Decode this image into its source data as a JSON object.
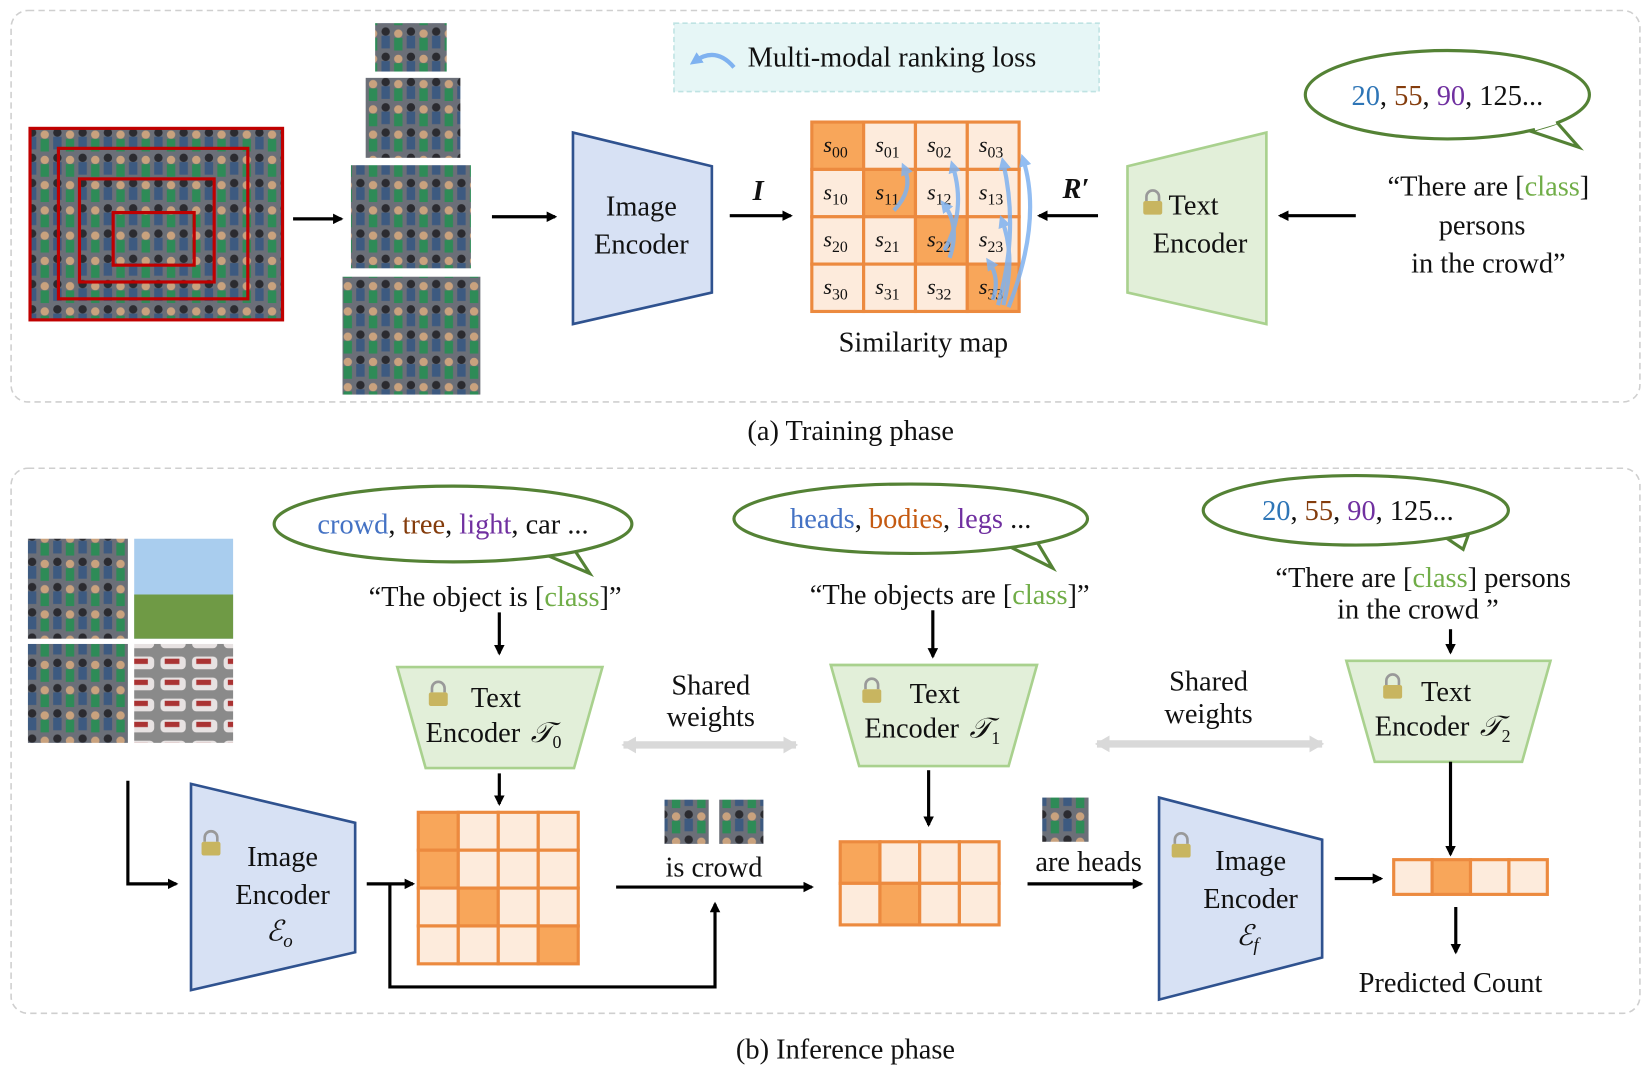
{
  "colors": {
    "class_word": "#70ad47",
    "num_20": "#2e75b6",
    "num_55": "#843c0c",
    "num_90": "#7030a0",
    "word_blue": "#4472c4",
    "word_brown": "#843c0c",
    "word_orange": "#c55a11",
    "word_purple": "#7030a0",
    "predicted": "#c00000",
    "cell_dark": "#f8a65a",
    "cell_light": "#fdebdc",
    "image_encoder": "#d7e1f4",
    "text_encoder": "#e2efd9"
  },
  "training": {
    "caption": "(a) Training phase",
    "legend": {
      "icon": "curved-arrow-icon",
      "label": "Multi-modal ranking loss"
    },
    "image_encoder": {
      "line1": "Image",
      "line2": "Encoder"
    },
    "text_encoder": {
      "icon": "lock-icon",
      "line1": "Text",
      "line2": "Encoder"
    },
    "arrow_I": "I",
    "arrow_R": "R′",
    "similarity_map": {
      "label": "Similarity map",
      "symbol": "s",
      "cells": [
        [
          "00",
          "01",
          "02",
          "03"
        ],
        [
          "10",
          "11",
          "12",
          "13"
        ],
        [
          "20",
          "21",
          "22",
          "23"
        ],
        [
          "30",
          "31",
          "32",
          "33"
        ]
      ],
      "highlighted": [
        [
          0,
          0
        ],
        [
          1,
          1
        ],
        [
          2,
          2
        ],
        [
          3,
          3
        ]
      ]
    },
    "bubble": {
      "parts": [
        "20",
        ", ",
        "55",
        ", ",
        "90",
        ", 125..."
      ]
    },
    "prompt": {
      "line1_a": "“There are [",
      "line1_class": "class",
      "line1_b": "]",
      "line2": "persons",
      "line3": "in the crowd”"
    }
  },
  "inference": {
    "caption": "(b) Inference phase",
    "image_encoder_o": {
      "icon": "lock-icon",
      "line1": "Image",
      "line2": "Encoder",
      "symbol": "ℰ",
      "sub": "o"
    },
    "image_encoder_f": {
      "icon": "lock-icon",
      "line1": "Image",
      "line2": "Encoder",
      "symbol": "ℰ",
      "sub": "f"
    },
    "bubble0": {
      "parts": [
        "crowd",
        ", ",
        "tree",
        ", ",
        "light",
        ", car ..."
      ]
    },
    "prompt0": {
      "a": "“The object is [",
      "class": "class",
      "b": "]”"
    },
    "text_encoder0": {
      "line1": "Text",
      "line2": "Encoder",
      "symbol": "𝒯",
      "sub": "0"
    },
    "bubble1": {
      "parts": [
        "heads",
        ", ",
        "bodies",
        ", ",
        "legs",
        " ..."
      ]
    },
    "prompt1": {
      "a": "“The objects are [",
      "class": "class",
      "b": "]”"
    },
    "text_encoder1": {
      "line1": "Text",
      "line2": "Encoder",
      "symbol": "𝒯",
      "sub": "1"
    },
    "bubble2": {
      "parts": [
        "20",
        ", ",
        "55",
        ", ",
        "90",
        ", 125..."
      ]
    },
    "prompt2": {
      "a": "“There are [",
      "class": "class",
      "b": "] persons",
      "line2": "in the crowd ”"
    },
    "text_encoder2": {
      "line1": "Text",
      "line2": "Encoder",
      "symbol": "𝒯",
      "sub": "2"
    },
    "shared_weights": {
      "line1": "Shared",
      "line2": "weights"
    },
    "is_crowd": "is crowd",
    "are_heads": "are heads",
    "grid0_highlighted": [
      [
        0,
        0
      ],
      [
        1,
        0
      ],
      [
        2,
        1
      ],
      [
        3,
        3
      ]
    ],
    "grid1_highlighted": [
      [
        0,
        0
      ],
      [
        1,
        1
      ]
    ],
    "vector_highlighted": 1,
    "predicted_count": "Predicted Count"
  }
}
